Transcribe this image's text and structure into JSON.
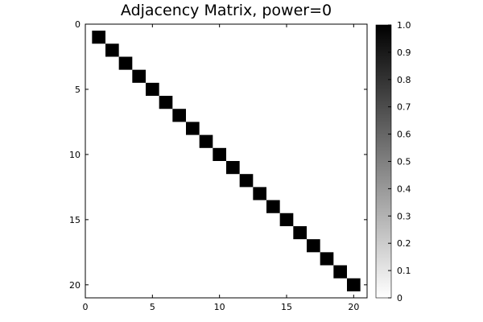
{
  "chart_data": {
    "type": "heatmap",
    "title": "Adjacency Matrix, power=0",
    "xlabel": "",
    "ylabel": "",
    "rows": 20,
    "cols": 20,
    "xlim": [
      0,
      21
    ],
    "ylim": [
      0,
      21
    ],
    "y_axis_inverted": true,
    "x_ticks": [
      0,
      5,
      10,
      15,
      20
    ],
    "y_ticks": [
      0,
      5,
      10,
      15,
      20
    ],
    "grid": false,
    "value_range": [
      0,
      1
    ],
    "colormap": "grays (0 = white, 1 = black)",
    "color_low": "#ffffff",
    "color_high": "#000000",
    "description": "20x20 identity matrix: value 1 on the diagonal (i = j), 0 elsewhere",
    "nonzero_cells": [
      {
        "row": 1,
        "col": 1,
        "value": 1
      },
      {
        "row": 2,
        "col": 2,
        "value": 1
      },
      {
        "row": 3,
        "col": 3,
        "value": 1
      },
      {
        "row": 4,
        "col": 4,
        "value": 1
      },
      {
        "row": 5,
        "col": 5,
        "value": 1
      },
      {
        "row": 6,
        "col": 6,
        "value": 1
      },
      {
        "row": 7,
        "col": 7,
        "value": 1
      },
      {
        "row": 8,
        "col": 8,
        "value": 1
      },
      {
        "row": 9,
        "col": 9,
        "value": 1
      },
      {
        "row": 10,
        "col": 10,
        "value": 1
      },
      {
        "row": 11,
        "col": 11,
        "value": 1
      },
      {
        "row": 12,
        "col": 12,
        "value": 1
      },
      {
        "row": 13,
        "col": 13,
        "value": 1
      },
      {
        "row": 14,
        "col": 14,
        "value": 1
      },
      {
        "row": 15,
        "col": 15,
        "value": 1
      },
      {
        "row": 16,
        "col": 16,
        "value": 1
      },
      {
        "row": 17,
        "col": 17,
        "value": 1
      },
      {
        "row": 18,
        "col": 18,
        "value": 1
      },
      {
        "row": 19,
        "col": 19,
        "value": 1
      },
      {
        "row": 20,
        "col": 20,
        "value": 1
      }
    ],
    "colorbar": {
      "min": 0,
      "max": 1,
      "ticks": [
        "0",
        "0.1",
        "0.2",
        "0.3",
        "0.4",
        "0.5",
        "0.6",
        "0.7",
        "0.8",
        "0.9",
        "1.0"
      ]
    }
  }
}
